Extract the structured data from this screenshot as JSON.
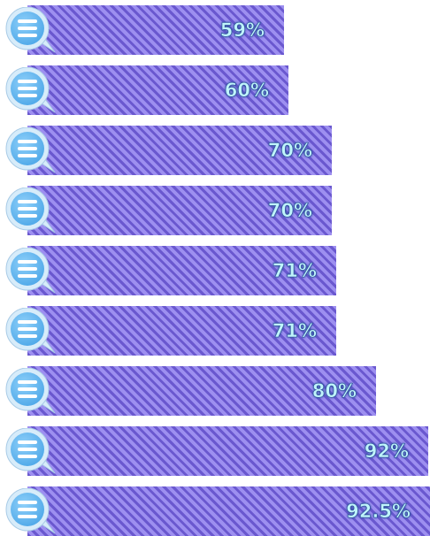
{
  "chart_data": {
    "type": "bar",
    "orientation": "horizontal",
    "values": [
      59,
      60,
      70,
      70,
      71,
      71,
      80,
      92,
      92.5
    ],
    "labels": [
      "59%",
      "60%",
      "70%",
      "70%",
      "71%",
      "71%",
      "80%",
      "92%",
      "92.5%"
    ],
    "xlim": [
      0,
      92.5
    ],
    "grid": false,
    "bar_icon": "speech-bubble-icon",
    "colors": {
      "bar": "#8878e0",
      "bar_stripe_dark": "#6a58cf",
      "bar_stripe_light": "#9d8ff0",
      "label_text": "#bff4fa",
      "label_outline": "#2d4f9a",
      "bubble_fill": "#4ea8e8",
      "bubble_rim": "#d7ecfa",
      "bubble_lines": "#ffffff"
    }
  }
}
